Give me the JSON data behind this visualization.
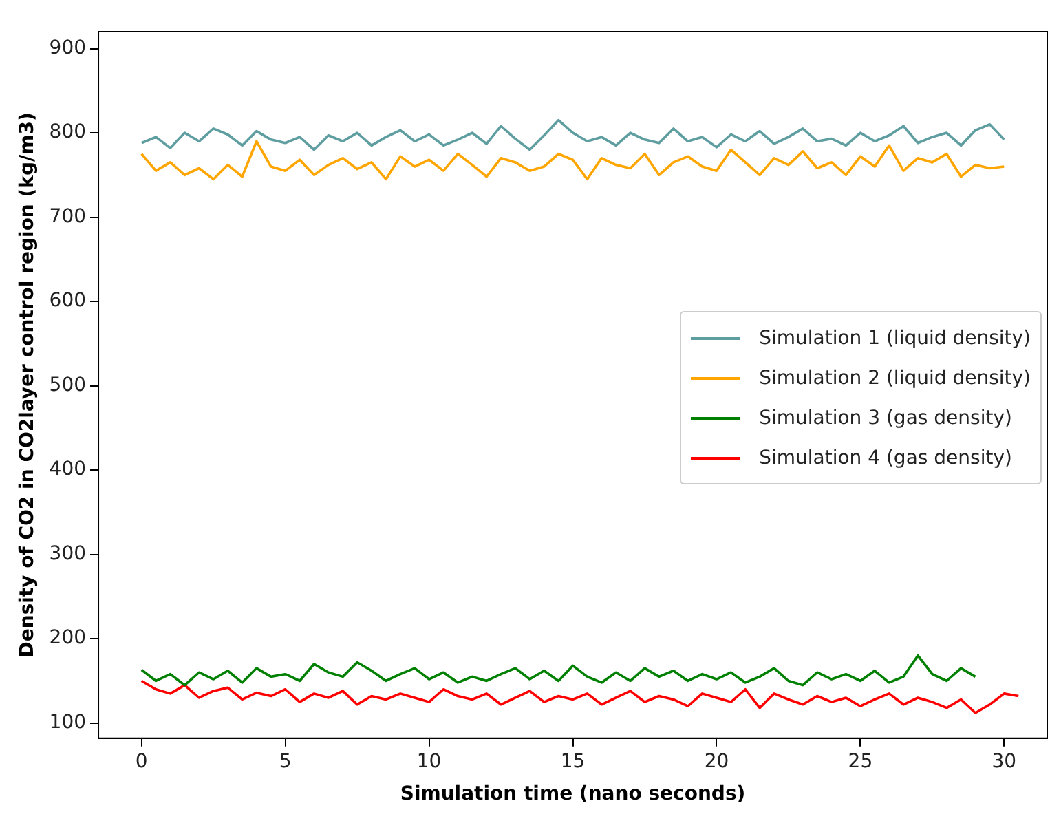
{
  "chart_data": {
    "type": "line",
    "xlabel": "Simulation time (nano seconds)",
    "ylabel": "Density of CO2 in CO2layer control region (kg/m3)",
    "xlim": [
      -1.5,
      31.5
    ],
    "ylim": [
      82,
      920
    ],
    "xticks": [
      0,
      5,
      10,
      15,
      20,
      25,
      30
    ],
    "yticks": [
      100,
      200,
      300,
      400,
      500,
      600,
      700,
      800,
      900
    ],
    "grid": false,
    "legend": "right",
    "marker": "none",
    "line_style": "solid",
    "series": [
      {
        "name": "Simulation 1 (liquid density)",
        "color": "#5f9ea0",
        "x": [
          0,
          0.5,
          1,
          1.5,
          2,
          2.5,
          3,
          3.5,
          4,
          4.5,
          5,
          5.5,
          6,
          6.5,
          7,
          7.5,
          8,
          8.5,
          9,
          9.5,
          10,
          10.5,
          11,
          11.5,
          12,
          12.5,
          13,
          13.5,
          14,
          14.5,
          15,
          15.5,
          16,
          16.5,
          17,
          17.5,
          18,
          18.5,
          19,
          19.5,
          20,
          20.5,
          21,
          21.5,
          22,
          22.5,
          23,
          23.5,
          24,
          24.5,
          25,
          25.5,
          26,
          26.5,
          27,
          27.5,
          28,
          28.5,
          29,
          29.5,
          30
        ],
        "values": [
          788,
          795,
          782,
          800,
          790,
          805,
          798,
          785,
          802,
          792,
          788,
          795,
          780,
          797,
          790,
          800,
          785,
          795,
          803,
          790,
          798,
          785,
          792,
          800,
          787,
          808,
          793,
          780,
          797,
          815,
          800,
          790,
          795,
          785,
          800,
          792,
          788,
          805,
          790,
          795,
          783,
          798,
          790,
          802,
          787,
          795,
          805,
          790,
          793,
          785,
          800,
          790,
          797,
          808,
          788,
          795,
          800,
          785,
          803,
          810,
          792
        ]
      },
      {
        "name": "Simulation 2 (liquid density)",
        "color": "#ffa500",
        "x": [
          0,
          0.5,
          1,
          1.5,
          2,
          2.5,
          3,
          3.5,
          4,
          4.5,
          5,
          5.5,
          6,
          6.5,
          7,
          7.5,
          8,
          8.5,
          9,
          9.5,
          10,
          10.5,
          11,
          11.5,
          12,
          12.5,
          13,
          13.5,
          14,
          14.5,
          15,
          15.5,
          16,
          16.5,
          17,
          17.5,
          18,
          18.5,
          19,
          19.5,
          20,
          20.5,
          21,
          21.5,
          22,
          22.5,
          23,
          23.5,
          24,
          24.5,
          25,
          25.5,
          26,
          26.5,
          27,
          27.5,
          28,
          28.5,
          29,
          29.5,
          30
        ],
        "values": [
          775,
          755,
          765,
          750,
          758,
          745,
          762,
          748,
          790,
          760,
          755,
          768,
          750,
          762,
          770,
          757,
          765,
          745,
          772,
          760,
          768,
          755,
          775,
          762,
          748,
          770,
          765,
          755,
          760,
          775,
          768,
          745,
          770,
          762,
          758,
          775,
          750,
          765,
          772,
          760,
          755,
          780,
          765,
          750,
          770,
          762,
          778,
          758,
          765,
          750,
          772,
          760,
          785,
          755,
          770,
          765,
          775,
          748,
          762,
          758,
          760
        ]
      },
      {
        "name": "Simulation 3 (gas density)",
        "color": "#008000",
        "x": [
          0,
          0.5,
          1,
          1.5,
          2,
          2.5,
          3,
          3.5,
          4,
          4.5,
          5,
          5.5,
          6,
          6.5,
          7,
          7.5,
          8,
          8.5,
          9,
          9.5,
          10,
          10.5,
          11,
          11.5,
          12,
          12.5,
          13,
          13.5,
          14,
          14.5,
          15,
          15.5,
          16,
          16.5,
          17,
          17.5,
          18,
          18.5,
          19,
          19.5,
          20,
          20.5,
          21,
          21.5,
          22,
          22.5,
          23,
          23.5,
          24,
          24.5,
          25,
          25.5,
          26,
          26.5,
          27,
          27.5,
          28,
          28.5,
          29
        ],
        "values": [
          163,
          150,
          158,
          145,
          160,
          152,
          162,
          148,
          165,
          155,
          158,
          150,
          170,
          160,
          155,
          172,
          162,
          150,
          158,
          165,
          152,
          160,
          148,
          155,
          150,
          158,
          165,
          152,
          162,
          150,
          168,
          155,
          148,
          160,
          150,
          165,
          155,
          162,
          150,
          158,
          152,
          160,
          148,
          155,
          165,
          150,
          145,
          160,
          152,
          158,
          150,
          162,
          148,
          155,
          180,
          158,
          150,
          165,
          155
        ]
      },
      {
        "name": "Simulation 4 (gas density)",
        "color": "#ff0000",
        "x": [
          0,
          0.5,
          1,
          1.5,
          2,
          2.5,
          3,
          3.5,
          4,
          4.5,
          5,
          5.5,
          6,
          6.5,
          7,
          7.5,
          8,
          8.5,
          9,
          9.5,
          10,
          10.5,
          11,
          11.5,
          12,
          12.5,
          13,
          13.5,
          14,
          14.5,
          15,
          15.5,
          16,
          16.5,
          17,
          17.5,
          18,
          18.5,
          19,
          19.5,
          20,
          20.5,
          21,
          21.5,
          22,
          22.5,
          23,
          23.5,
          24,
          24.5,
          25,
          25.5,
          26,
          26.5,
          27,
          27.5,
          28,
          28.5,
          29,
          29.5,
          30,
          30.5
        ],
        "values": [
          150,
          140,
          135,
          145,
          130,
          138,
          142,
          128,
          136,
          132,
          140,
          125,
          135,
          130,
          138,
          122,
          132,
          128,
          135,
          130,
          125,
          140,
          132,
          128,
          135,
          122,
          130,
          138,
          125,
          132,
          128,
          135,
          122,
          130,
          138,
          125,
          132,
          128,
          120,
          135,
          130,
          125,
          140,
          118,
          135,
          128,
          122,
          132,
          125,
          130,
          120,
          128,
          135,
          122,
          130,
          125,
          118,
          128,
          112,
          122,
          135,
          132
        ]
      }
    ]
  }
}
